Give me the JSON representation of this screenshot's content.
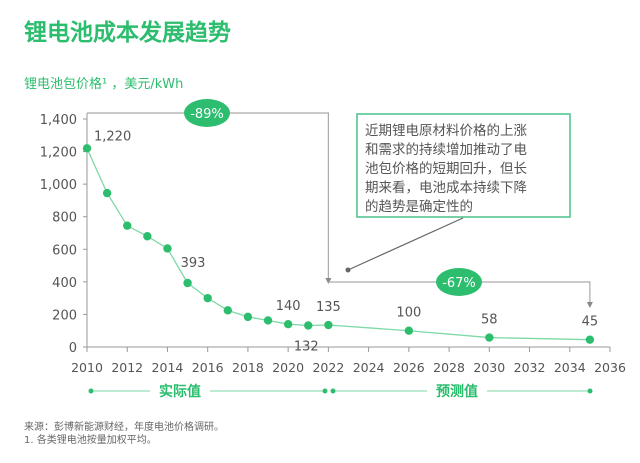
{
  "chart_data": {
    "type": "line",
    "title": "锂电池成本发展趋势",
    "ylabel": "锂电池包价格¹ ，美元/kWh",
    "xlim": [
      2010,
      2036
    ],
    "ylim": [
      0,
      1400
    ],
    "xticks": [
      2010,
      2012,
      2014,
      2016,
      2018,
      2020,
      2022,
      2024,
      2026,
      2028,
      2030,
      2032,
      2034,
      2036
    ],
    "yticks": [
      0,
      200,
      400,
      600,
      800,
      1000,
      1200,
      1400
    ],
    "ytick_labels": [
      "0",
      "200",
      "400",
      "600",
      "800",
      "1,000",
      "1,200",
      "1,400"
    ],
    "grid": false,
    "series_color": "#2dbd6e",
    "points": [
      {
        "x": 2010,
        "y": 1220,
        "label": "1,220"
      },
      {
        "x": 2011,
        "y": 945
      },
      {
        "x": 2012,
        "y": 745
      },
      {
        "x": 2013,
        "y": 680
      },
      {
        "x": 2014,
        "y": 605
      },
      {
        "x": 2015,
        "y": 393,
        "label": "393"
      },
      {
        "x": 2016,
        "y": 300
      },
      {
        "x": 2017,
        "y": 225
      },
      {
        "x": 2018,
        "y": 185
      },
      {
        "x": 2019,
        "y": 163
      },
      {
        "x": 2020,
        "y": 140,
        "label": "140"
      },
      {
        "x": 2021,
        "y": 132,
        "label": "132"
      },
      {
        "x": 2022,
        "y": 135,
        "label": "135"
      },
      {
        "x": 2026,
        "y": 100,
        "label": "100"
      },
      {
        "x": 2030,
        "y": 58,
        "label": "58"
      },
      {
        "x": 2035,
        "y": 45,
        "label": "45"
      }
    ],
    "annotations": {
      "change_1": "-89%",
      "change_2": "-67%",
      "callout_lines": [
        "近期锂电原材料价格的上涨",
        "和需求的持续增加推动了电",
        "池包价格的短期回升，但长",
        "期来看，电池成本持续下降",
        "的趋势是确定性的"
      ],
      "actual_label": "实际值",
      "forecast_label": "预测值"
    }
  },
  "footer": {
    "source": "来源：彭博新能源财经，年度电池价格调研。",
    "note": "1. 各类锂电池按量加权平均。"
  }
}
